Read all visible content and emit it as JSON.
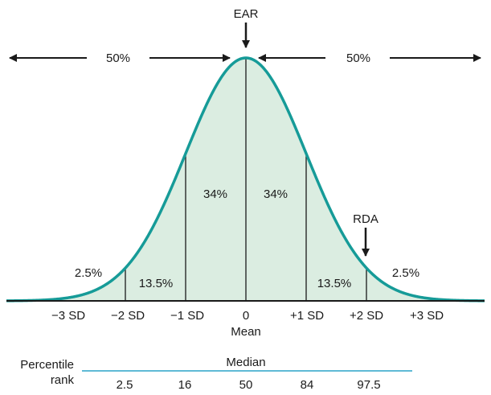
{
  "colors": {
    "curve": "#169b98",
    "fill": "#dbede1",
    "ink": "#1a1a1a",
    "rule": "#2aa3c9",
    "background": "#ffffff"
  },
  "markers": {
    "ear": "EAR",
    "rda": "RDA",
    "left_half": "50%",
    "right_half": "50%"
  },
  "regions": [
    {
      "label": "2.5%"
    },
    {
      "label": "13.5%"
    },
    {
      "label": "34%"
    },
    {
      "label": "34%"
    },
    {
      "label": "13.5%"
    },
    {
      "label": "2.5%"
    }
  ],
  "axis": {
    "ticks": [
      "−3 SD",
      "−2 SD",
      "−1 SD",
      "0",
      "+1 SD",
      "+2 SD",
      "+3 SD"
    ],
    "center_caption": "Mean"
  },
  "percentile": {
    "row_label_line1": "Percentile",
    "row_label_line2": "rank",
    "median_label": "Median",
    "values": [
      "2.5",
      "16",
      "50",
      "84",
      "97.5"
    ]
  }
}
